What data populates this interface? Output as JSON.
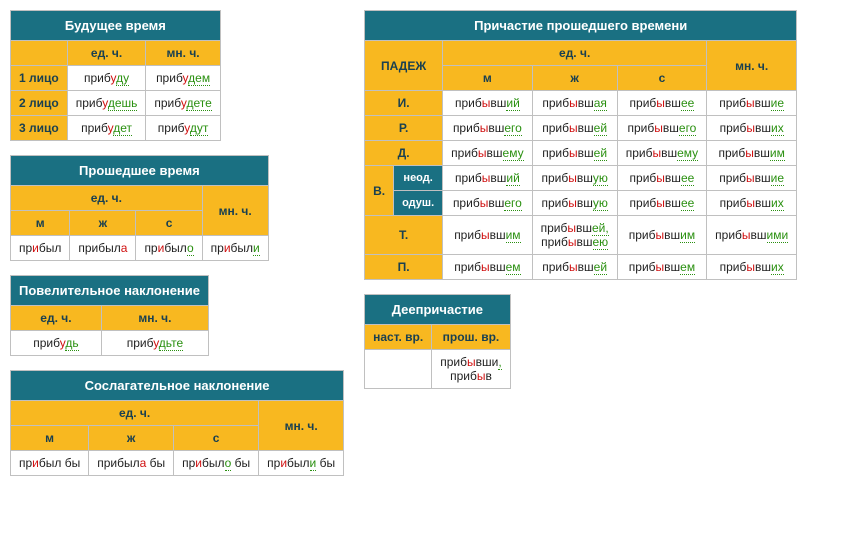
{
  "colors": {
    "title_bg": "#1a7082",
    "title_fg": "#ffffff",
    "header_bg": "#f8b820",
    "header_fg": "#1a4050",
    "cell_bg": "#ffffff",
    "border": "#c0c0c0",
    "stress": "#d01010",
    "morph": "#2a9010"
  },
  "tables": {
    "future": {
      "title": "Будущее время",
      "col_headers": [
        "",
        "ед. ч.",
        "мн. ч."
      ],
      "row_labels": [
        "1 лицо",
        "2 лицо",
        "3 лицо"
      ],
      "rows": [
        [
          {
            "t": "приб",
            "s": "у",
            "m": "ду"
          },
          {
            "t": "приб",
            "s": "у",
            "m": "дем"
          }
        ],
        [
          {
            "t": "приб",
            "s": "у",
            "m": "дешь"
          },
          {
            "t": "приб",
            "s": "у",
            "m": "дете"
          }
        ],
        [
          {
            "t": "приб",
            "s": "у",
            "m": "дет"
          },
          {
            "t": "приб",
            "s": "у",
            "m": "дут"
          }
        ]
      ]
    },
    "past": {
      "title": "Прошедшее время",
      "header_top": "ед. ч.",
      "header_pl": "мн. ч.",
      "gender_headers": [
        "м",
        "ж",
        "с"
      ],
      "rows": [
        [
          {
            "t": "пр",
            "s": "и",
            "t2": "был",
            "m": ""
          },
          {
            "t": "прибыл",
            "s": "а",
            "m": ""
          },
          {
            "t": "пр",
            "s": "и",
            "t2": "был",
            "m": "о"
          },
          {
            "t": "пр",
            "s": "и",
            "t2": "был",
            "m": "и"
          }
        ]
      ]
    },
    "imperative": {
      "title": "Повелительное наклонение",
      "col_headers": [
        "ед. ч.",
        "мн. ч."
      ],
      "rows": [
        [
          {
            "t": "приб",
            "s": "у",
            "m": "дь"
          },
          {
            "t": "приб",
            "s": "у",
            "m": "дьте"
          }
        ]
      ]
    },
    "subjunctive": {
      "title": "Сослагательное наклонение",
      "header_top": "ед. ч.",
      "header_pl": "мн. ч.",
      "gender_headers": [
        "м",
        "ж",
        "с"
      ],
      "rows": [
        [
          {
            "t": "пр",
            "s": "и",
            "t2": "был бы"
          },
          {
            "t": "прибыл",
            "s": "а",
            "t2": " бы"
          },
          {
            "t": "пр",
            "s": "и",
            "t2": "был",
            "m": "о",
            " suf": " бы"
          },
          {
            "t": "пр",
            "s": "и",
            "t2": "был",
            "m": "и",
            " suf": " бы"
          }
        ]
      ]
    },
    "participle": {
      "title": "Причастие прошедшего времени",
      "case_label": "ПАДЕЖ",
      "header_sg": "ед. ч.",
      "header_pl": "мн. ч.",
      "gender_headers": [
        "м",
        "ж",
        "с"
      ],
      "cases": [
        "И.",
        "Р.",
        "Д.",
        "В.",
        "Т.",
        "П."
      ],
      "v_sub": [
        "неод.",
        "одуш."
      ],
      "data": {
        "И.": [
          "приб|ы|вш|ий",
          "приб|ы|вш|ая",
          "приб|ы|вш|ее",
          "приб|ы|вш|ие"
        ],
        "Р.": [
          "приб|ы|вш|его",
          "приб|ы|вш|ей",
          "приб|ы|вш|его",
          "приб|ы|вш|их"
        ],
        "Д.": [
          "приб|ы|вш|ему",
          "приб|ы|вш|ей",
          "приб|ы|вш|ему",
          "приб|ы|вш|им"
        ],
        "В.неод.": [
          "приб|ы|вш|ий",
          "приб|ы|вш|ую",
          "приб|ы|вш|ее",
          "приб|ы|вш|ие"
        ],
        "В.одуш.": [
          "приб|ы|вш|его",
          "приб|ы|вш|ую",
          "приб|ы|вш|ее",
          "приб|ы|вш|их"
        ],
        "Т.": [
          "приб|ы|вш|им",
          "приб|ы|вш|ей,<br>приб|ы|вш|ею",
          "приб|ы|вш|им",
          "приб|ы|вш|ими"
        ],
        "П.": [
          "приб|ы|вш|ем",
          "приб|ы|вш|ей",
          "приб|ы|вш|ем",
          "приб|ы|вш|их"
        ]
      }
    },
    "gerund": {
      "title": "Деепричастие",
      "col_headers": [
        "наст. вр.",
        "прош. вр."
      ],
      "rows": [
        [
          "",
          "приб|ы|вши|,<br>приб|ы|в|"
        ]
      ]
    }
  }
}
